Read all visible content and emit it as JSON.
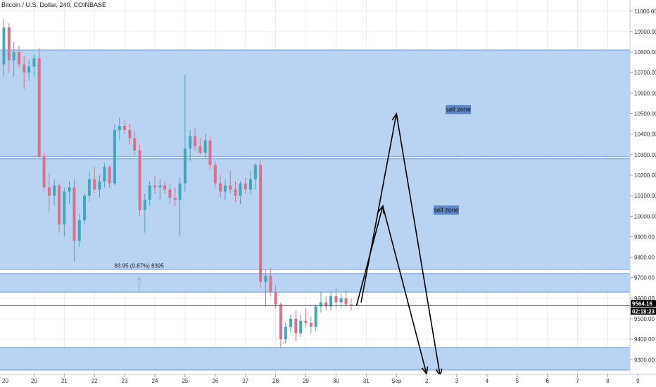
{
  "symbol_title": "Bitcoin / U.S. Dollar, 240, COINBASE",
  "chart_data": {
    "type": "candlestick",
    "title": "Bitcoin / U.S. Dollar, 240, COINBASE",
    "x_tick_labels": [
      "20",
      "21",
      "22",
      "23",
      "24",
      "25",
      "26",
      "27",
      "28",
      "29",
      "30",
      "31",
      "Sep",
      "2",
      "3",
      "4",
      "5",
      "6",
      "7",
      "8",
      "9"
    ],
    "y_range": [
      9250,
      11050
    ],
    "y_ticks": [
      9300,
      9400,
      9500,
      9600,
      9700,
      9800,
      9900,
      10000,
      10100,
      10200,
      10300,
      10400,
      10500,
      10600,
      10700,
      10800,
      10900,
      11000
    ],
    "y_tick_labels": [
      "9300.00",
      "9400.00",
      "9500.00",
      "9600.00",
      "9700.00",
      "9800.00",
      "9900.00",
      "10000.00",
      "10100.00",
      "10200.00",
      "10300.00",
      "10400.00",
      "10500.00",
      "10600.00",
      "10700.00",
      "10800.00",
      "10900.00",
      "11000.00"
    ],
    "candles": [
      {
        "t": 20.0,
        "o": 10740,
        "h": 10960,
        "l": 10680,
        "c": 10920
      },
      {
        "t": 20.17,
        "o": 10920,
        "h": 10940,
        "l": 10700,
        "c": 10760
      },
      {
        "t": 20.33,
        "o": 10760,
        "h": 10850,
        "l": 10680,
        "c": 10800
      },
      {
        "t": 20.5,
        "o": 10800,
        "h": 10830,
        "l": 10720,
        "c": 10740
      },
      {
        "t": 20.67,
        "o": 10740,
        "h": 10780,
        "l": 10620,
        "c": 10700
      },
      {
        "t": 20.83,
        "o": 10700,
        "h": 10760,
        "l": 10660,
        "c": 10730
      },
      {
        "t": 21.0,
        "o": 10730,
        "h": 10790,
        "l": 10680,
        "c": 10770
      },
      {
        "t": 21.17,
        "o": 10770,
        "h": 10820,
        "l": 10280,
        "c": 10290
      },
      {
        "t": 21.33,
        "o": 10290,
        "h": 10310,
        "l": 10120,
        "c": 10140
      },
      {
        "t": 21.5,
        "o": 10140,
        "h": 10210,
        "l": 10020,
        "c": 10100
      },
      {
        "t": 21.67,
        "o": 10100,
        "h": 10180,
        "l": 10050,
        "c": 10150
      },
      {
        "t": 21.83,
        "o": 10150,
        "h": 10160,
        "l": 9920,
        "c": 9960
      },
      {
        "t": 22.0,
        "o": 9960,
        "h": 10140,
        "l": 9900,
        "c": 10120
      },
      {
        "t": 22.17,
        "o": 10120,
        "h": 10170,
        "l": 10060,
        "c": 10140
      },
      {
        "t": 22.33,
        "o": 10140,
        "h": 10180,
        "l": 9780,
        "c": 9880
      },
      {
        "t": 22.5,
        "o": 9880,
        "h": 10010,
        "l": 9850,
        "c": 9980
      },
      {
        "t": 22.67,
        "o": 9980,
        "h": 10110,
        "l": 9960,
        "c": 10100
      },
      {
        "t": 22.83,
        "o": 10100,
        "h": 10220,
        "l": 10070,
        "c": 10180
      },
      {
        "t": 23.0,
        "o": 10180,
        "h": 10240,
        "l": 10110,
        "c": 10130
      },
      {
        "t": 23.17,
        "o": 10130,
        "h": 10200,
        "l": 10090,
        "c": 10170
      },
      {
        "t": 23.33,
        "o": 10170,
        "h": 10260,
        "l": 10140,
        "c": 10240
      },
      {
        "t": 23.5,
        "o": 10240,
        "h": 10250,
        "l": 10140,
        "c": 10160
      },
      {
        "t": 23.67,
        "o": 10160,
        "h": 10450,
        "l": 10150,
        "c": 10420
      },
      {
        "t": 23.83,
        "o": 10420,
        "h": 10480,
        "l": 10370,
        "c": 10440
      },
      {
        "t": 24.0,
        "o": 10440,
        "h": 10470,
        "l": 10400,
        "c": 10420
      },
      {
        "t": 24.17,
        "o": 10420,
        "h": 10450,
        "l": 10350,
        "c": 10380
      },
      {
        "t": 24.33,
        "o": 10380,
        "h": 10410,
        "l": 10300,
        "c": 10320
      },
      {
        "t": 24.5,
        "o": 10320,
        "h": 10350,
        "l": 10000,
        "c": 10030
      },
      {
        "t": 24.67,
        "o": 10030,
        "h": 10110,
        "l": 9920,
        "c": 10080
      },
      {
        "t": 24.83,
        "o": 10080,
        "h": 10170,
        "l": 10050,
        "c": 10150
      },
      {
        "t": 25.0,
        "o": 10150,
        "h": 10200,
        "l": 10110,
        "c": 10140
      },
      {
        "t": 25.17,
        "o": 10140,
        "h": 10180,
        "l": 10080,
        "c": 10150
      },
      {
        "t": 25.33,
        "o": 10150,
        "h": 10170,
        "l": 10110,
        "c": 10130
      },
      {
        "t": 25.5,
        "o": 10130,
        "h": 10160,
        "l": 10060,
        "c": 10090
      },
      {
        "t": 25.67,
        "o": 10090,
        "h": 10140,
        "l": 10050,
        "c": 10080
      },
      {
        "t": 25.83,
        "o": 10080,
        "h": 10190,
        "l": 9900,
        "c": 10160
      },
      {
        "t": 26.0,
        "o": 10160,
        "h": 10690,
        "l": 10120,
        "c": 10330
      },
      {
        "t": 26.17,
        "o": 10330,
        "h": 10420,
        "l": 10270,
        "c": 10390
      },
      {
        "t": 26.33,
        "o": 10390,
        "h": 10430,
        "l": 10320,
        "c": 10340
      },
      {
        "t": 26.5,
        "o": 10340,
        "h": 10380,
        "l": 10300,
        "c": 10310
      },
      {
        "t": 26.67,
        "o": 10310,
        "h": 10400,
        "l": 10280,
        "c": 10370
      },
      {
        "t": 26.83,
        "o": 10370,
        "h": 10390,
        "l": 10230,
        "c": 10250
      },
      {
        "t": 27.0,
        "o": 10250,
        "h": 10270,
        "l": 10140,
        "c": 10160
      },
      {
        "t": 27.17,
        "o": 10160,
        "h": 10200,
        "l": 10090,
        "c": 10120
      },
      {
        "t": 27.33,
        "o": 10120,
        "h": 10180,
        "l": 10080,
        "c": 10150
      },
      {
        "t": 27.5,
        "o": 10150,
        "h": 10220,
        "l": 10110,
        "c": 10130
      },
      {
        "t": 27.67,
        "o": 10130,
        "h": 10170,
        "l": 10070,
        "c": 10100
      },
      {
        "t": 27.83,
        "o": 10100,
        "h": 10170,
        "l": 10060,
        "c": 10160
      },
      {
        "t": 28.0,
        "o": 10160,
        "h": 10190,
        "l": 10110,
        "c": 10130
      },
      {
        "t": 28.17,
        "o": 10130,
        "h": 10220,
        "l": 10110,
        "c": 10180
      },
      {
        "t": 28.33,
        "o": 10180,
        "h": 10260,
        "l": 10130,
        "c": 10250
      },
      {
        "t": 28.5,
        "o": 10250,
        "h": 10270,
        "l": 9650,
        "c": 9680
      },
      {
        "t": 28.67,
        "o": 9680,
        "h": 9740,
        "l": 9560,
        "c": 9710
      },
      {
        "t": 28.83,
        "o": 9710,
        "h": 9750,
        "l": 9610,
        "c": 9630
      },
      {
        "t": 29.0,
        "o": 9630,
        "h": 9660,
        "l": 9550,
        "c": 9570
      },
      {
        "t": 29.17,
        "o": 9570,
        "h": 9580,
        "l": 9360,
        "c": 9400
      },
      {
        "t": 29.33,
        "o": 9400,
        "h": 9480,
        "l": 9380,
        "c": 9460
      },
      {
        "t": 29.5,
        "o": 9460,
        "h": 9520,
        "l": 9430,
        "c": 9500
      },
      {
        "t": 29.67,
        "o": 9500,
        "h": 9540,
        "l": 9390,
        "c": 9430
      },
      {
        "t": 29.83,
        "o": 9430,
        "h": 9520,
        "l": 9410,
        "c": 9490
      },
      {
        "t": 30.0,
        "o": 9490,
        "h": 9550,
        "l": 9460,
        "c": 9480
      },
      {
        "t": 30.17,
        "o": 9480,
        "h": 9510,
        "l": 9430,
        "c": 9460
      },
      {
        "t": 30.33,
        "o": 9460,
        "h": 9570,
        "l": 9440,
        "c": 9560
      },
      {
        "t": 30.5,
        "o": 9560,
        "h": 9630,
        "l": 9530,
        "c": 9580
      },
      {
        "t": 30.67,
        "o": 9580,
        "h": 9610,
        "l": 9540,
        "c": 9560
      },
      {
        "t": 30.83,
        "o": 9560,
        "h": 9630,
        "l": 9540,
        "c": 9610
      },
      {
        "t": 31.0,
        "o": 9610,
        "h": 9650,
        "l": 9550,
        "c": 9580
      },
      {
        "t": 31.17,
        "o": 9580,
        "h": 9620,
        "l": 9550,
        "c": 9600
      },
      {
        "t": 31.33,
        "o": 9600,
        "h": 9640,
        "l": 9560,
        "c": 9570
      },
      {
        "t": 31.5,
        "o": 9570,
        "h": 9600,
        "l": 9540,
        "c": 9564
      }
    ],
    "zones": [
      {
        "name": "sell-zone-upper",
        "from": 10290,
        "to": 10810
      },
      {
        "name": "sell-zone-lower",
        "from": 9740,
        "to": 10280
      },
      {
        "name": "zone-mid",
        "from": 9630,
        "to": 9720
      },
      {
        "name": "zone-low",
        "from": 9250,
        "to": 9360
      }
    ],
    "zone_labels": [
      {
        "text": "sell zone",
        "t": 35.05,
        "price": 10520
      },
      {
        "text": "sell zone",
        "t": 34.65,
        "price": 10030
      }
    ],
    "projection_paths": [
      [
        [
          31.68,
          9565
        ],
        [
          32.55,
          10050
        ],
        [
          34.0,
          9230
        ]
      ],
      [
        [
          31.83,
          9580
        ],
        [
          33.0,
          10500
        ],
        [
          34.45,
          9220
        ]
      ]
    ],
    "measurement": {
      "text": "83.95 (0.87%) 8395",
      "t": 24.48,
      "price": 9700
    },
    "current_price": {
      "value": 9564,
      "label": "9564.16"
    },
    "countdown": "02:18:23"
  },
  "colors": {
    "zone_fill": "#b9d3f3",
    "zone_edge": "#7fa7d6",
    "up_candle": "#3fa9b9",
    "down_candle": "#d9708f",
    "grid": "#e8edf2",
    "axis_bg": "#ffffff",
    "price_tag": "#000000",
    "last_price_line": "#5a5a5a"
  }
}
